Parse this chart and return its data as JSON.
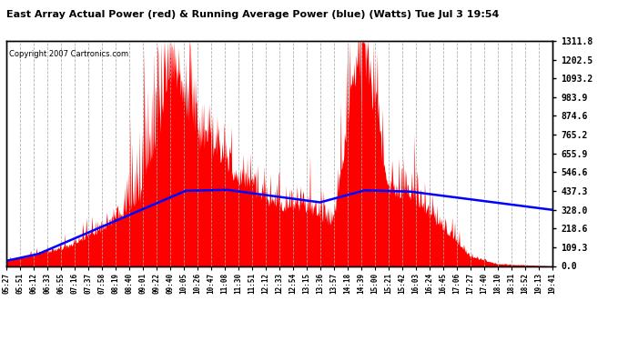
{
  "title": "East Array Actual Power (red) & Running Average Power (blue) (Watts) Tue Jul 3 19:54",
  "copyright": "Copyright 2007 Cartronics.com",
  "ylabel_right_ticks": [
    0.0,
    109.3,
    218.6,
    328.0,
    437.3,
    546.6,
    655.9,
    765.2,
    874.6,
    983.9,
    1093.2,
    1202.5,
    1311.8
  ],
  "ymax": 1311.8,
  "ymin": 0.0,
  "background_color": "#ffffff",
  "fill_color": "#ff0000",
  "line_color": "#0000ff",
  "grid_color": "#aaaaaa",
  "title_color": "#000000",
  "copyright_color": "#000000",
  "x_labels": [
    "05:27",
    "05:51",
    "06:12",
    "06:33",
    "06:55",
    "07:16",
    "07:37",
    "07:58",
    "08:19",
    "08:40",
    "09:01",
    "09:22",
    "09:40",
    "10:05",
    "10:26",
    "10:47",
    "11:08",
    "11:30",
    "11:51",
    "12:12",
    "12:33",
    "12:54",
    "13:15",
    "13:36",
    "13:57",
    "14:18",
    "14:39",
    "15:00",
    "15:21",
    "15:42",
    "16:03",
    "16:24",
    "16:45",
    "17:06",
    "17:27",
    "17:40",
    "18:10",
    "18:31",
    "18:52",
    "19:13",
    "19:41"
  ],
  "figwidth": 6.9,
  "figheight": 3.75,
  "dpi": 100
}
